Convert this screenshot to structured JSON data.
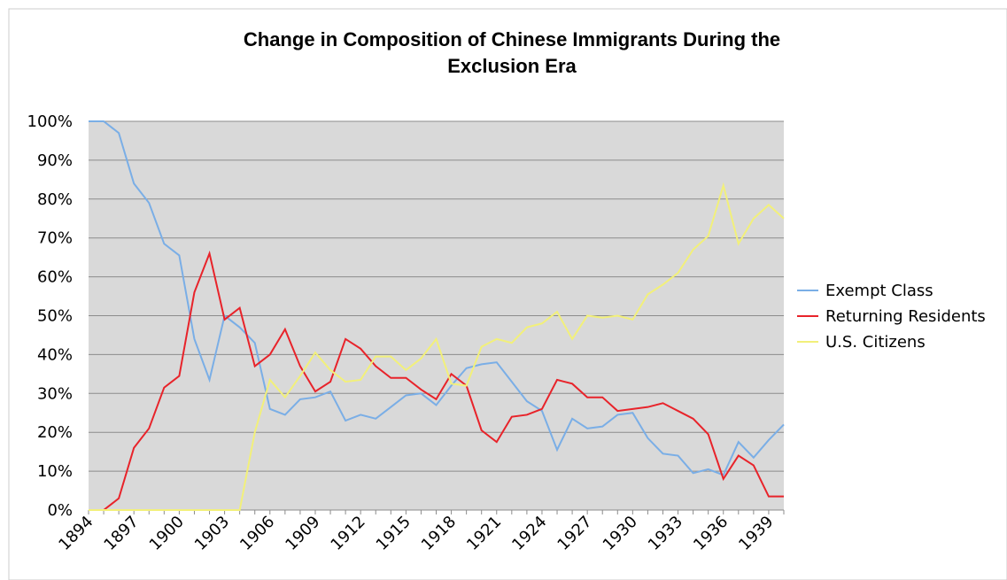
{
  "chart_data": {
    "type": "line",
    "title_lines": [
      "Change in Composition of Chinese Immigrants During the",
      "Exclusion Era"
    ],
    "categories": [
      1894,
      null,
      null,
      1897,
      null,
      null,
      1900,
      null,
      null,
      1903,
      null,
      null,
      1906,
      null,
      null,
      1909,
      null,
      null,
      1912,
      null,
      null,
      1915,
      null,
      null,
      1918,
      null,
      null,
      1921,
      null,
      null,
      1924,
      null,
      null,
      1927,
      null,
      null,
      1930,
      null,
      null,
      1933,
      null,
      null,
      1936,
      null,
      null,
      1939,
      null
    ],
    "series": [
      {
        "name": "Exempt Class",
        "color": "#7aaee6",
        "values": [
          100,
          100,
          97,
          84,
          79,
          68.5,
          65.5,
          44,
          33.5,
          50,
          47,
          43,
          26,
          24.5,
          28.5,
          29,
          30.5,
          23,
          24.5,
          23.5,
          26.5,
          29.5,
          30,
          27,
          32,
          36.5,
          37.5,
          38,
          33,
          28,
          25.5,
          15.5,
          23.5,
          21,
          21.5,
          24.5,
          25,
          18.5,
          14.5,
          14,
          9.5,
          10.5,
          9,
          17.5,
          13.5,
          18,
          22
        ]
      },
      {
        "name": "Returning Residents",
        "color": "#e8232a",
        "values": [
          0,
          0,
          3,
          16,
          21,
          31.5,
          34.5,
          56,
          66,
          49,
          52,
          37,
          40,
          46.5,
          37,
          30.5,
          33,
          44,
          41.5,
          37,
          34,
          34,
          31,
          28.5,
          35,
          32,
          20.5,
          17.5,
          24,
          24.5,
          26,
          33.5,
          32.5,
          29,
          29,
          25.5,
          26,
          26.5,
          27.5,
          25.5,
          23.5,
          19.5,
          8,
          14,
          11.5,
          3.5,
          3.5
        ]
      },
      {
        "name": "U.S. Citizens",
        "color": "#f2f07a",
        "values": [
          0,
          0,
          0,
          0,
          0,
          0,
          0,
          0,
          0,
          0,
          0,
          20,
          33.5,
          29,
          34.5,
          40.5,
          36,
          33,
          33.5,
          39.5,
          39.5,
          36,
          39,
          44,
          32.5,
          32,
          42,
          44,
          43,
          47,
          48,
          51,
          44,
          50,
          49.5,
          50,
          49,
          55.5,
          58,
          61,
          67,
          70.5,
          83.5,
          68.5,
          75,
          78.5,
          75
        ]
      }
    ],
    "ylim": [
      0,
      100
    ],
    "yticks": [
      {
        "value": 0,
        "label": "0%"
      },
      {
        "value": 10,
        "label": "10%"
      },
      {
        "value": 20,
        "label": "20%"
      },
      {
        "value": 30,
        "label": "30%"
      },
      {
        "value": 40,
        "label": "40%"
      },
      {
        "value": 50,
        "label": "50%"
      },
      {
        "value": 60,
        "label": "60%"
      },
      {
        "value": 70,
        "label": "70%"
      },
      {
        "value": 80,
        "label": "80%"
      },
      {
        "value": 90,
        "label": "90%"
      },
      {
        "value": 100,
        "label": "100%"
      }
    ],
    "grid": true,
    "legend": "right"
  }
}
